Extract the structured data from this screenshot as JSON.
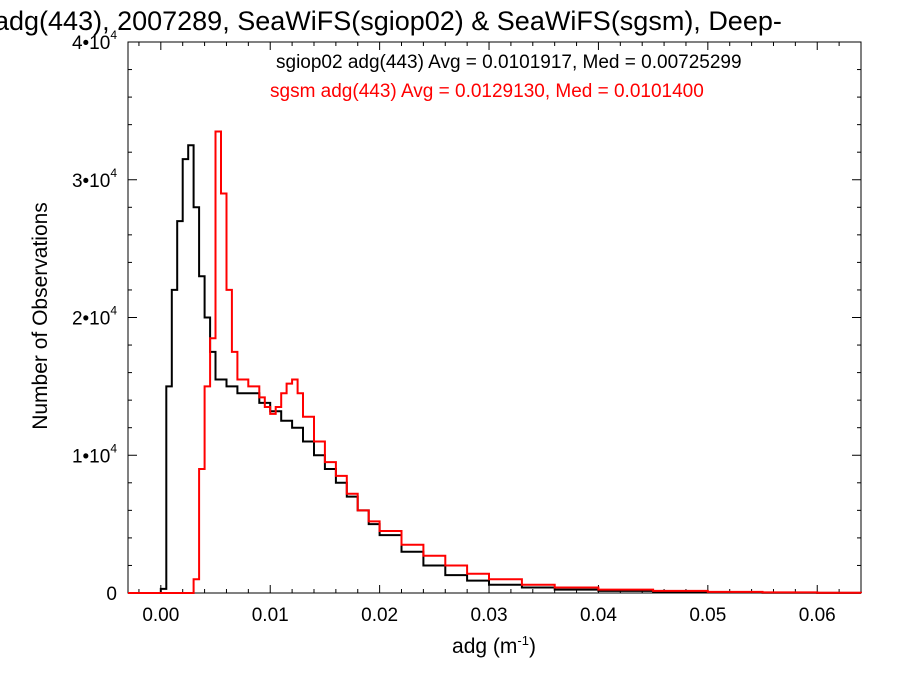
{
  "chart_data": {
    "type": "line",
    "title": "adg(443), 2007289, SeaWiFS(sgiop02) & SeaWiFS(sgsm), Deep-",
    "xlabel": "adg (m",
    "xlabel_sup": "-1",
    "xlabel_end": ")",
    "ylabel": "Number of Observations",
    "xlim": [
      -0.003,
      0.064
    ],
    "ylim": [
      0,
      40000
    ],
    "grid": false,
    "x_ticks": [
      {
        "value": 0.0,
        "label": "0.00"
      },
      {
        "value": 0.01,
        "label": "0.01"
      },
      {
        "value": 0.02,
        "label": "0.02"
      },
      {
        "value": 0.03,
        "label": "0.03"
      },
      {
        "value": 0.04,
        "label": "0.04"
      },
      {
        "value": 0.05,
        "label": "0.05"
      },
      {
        "value": 0.06,
        "label": "0.06"
      }
    ],
    "y_ticks": [
      {
        "value": 0,
        "label": "0",
        "exp": ""
      },
      {
        "value": 10000,
        "label": "1•10",
        "exp": "4"
      },
      {
        "value": 20000,
        "label": "2•10",
        "exp": "4"
      },
      {
        "value": 30000,
        "label": "3•10",
        "exp": "4"
      },
      {
        "value": 40000,
        "label": "4•10",
        "exp": "4"
      }
    ],
    "legend": {
      "placement": "top-right",
      "entries": [
        {
          "text": "sgiop02 adg(443) Avg = 0.0101917, Med = 0.00725299",
          "color": "#000000"
        },
        {
          "text": "sgsm adg(443) Avg = 0.0129130, Med = 0.0101400",
          "color": "#ff0000"
        }
      ]
    },
    "series": [
      {
        "color": "#000000",
        "x": [
          -0.003,
          0.0,
          0.0005,
          0.001,
          0.0015,
          0.002,
          0.0025,
          0.003,
          0.0035,
          0.004,
          0.0045,
          0.005,
          0.006,
          0.007,
          0.008,
          0.009,
          0.01,
          0.011,
          0.012,
          0.013,
          0.014,
          0.015,
          0.016,
          0.017,
          0.018,
          0.019,
          0.02,
          0.022,
          0.024,
          0.026,
          0.028,
          0.03,
          0.033,
          0.036,
          0.04,
          0.045,
          0.05,
          0.055,
          0.06,
          0.064
        ],
        "values": [
          0,
          300,
          15000,
          22000,
          27000,
          31500,
          32500,
          28000,
          23000,
          20000,
          17500,
          15500,
          15000,
          14500,
          14500,
          13800,
          13200,
          12500,
          12000,
          11000,
          10000,
          9000,
          8000,
          7000,
          6000,
          5000,
          4200,
          3000,
          2000,
          1300,
          900,
          600,
          400,
          250,
          150,
          80,
          40,
          20,
          10,
          5
        ]
      },
      {
        "color": "#ff0000",
        "x": [
          -0.003,
          0.0025,
          0.003,
          0.0035,
          0.004,
          0.0045,
          0.005,
          0.0055,
          0.006,
          0.0065,
          0.007,
          0.008,
          0.009,
          0.0095,
          0.01,
          0.0105,
          0.011,
          0.0115,
          0.012,
          0.0125,
          0.013,
          0.014,
          0.015,
          0.016,
          0.017,
          0.018,
          0.019,
          0.02,
          0.022,
          0.024,
          0.026,
          0.028,
          0.03,
          0.033,
          0.036,
          0.04,
          0.045,
          0.05,
          0.055,
          0.06,
          0.064
        ],
        "values": [
          0,
          0,
          1000,
          9000,
          15000,
          18500,
          33500,
          29000,
          22000,
          17500,
          15500,
          15000,
          14200,
          13500,
          13000,
          13500,
          14500,
          15200,
          15500,
          14500,
          12800,
          11000,
          9500,
          8500,
          7200,
          6000,
          5200,
          4500,
          3500,
          2700,
          2000,
          1400,
          1000,
          600,
          400,
          250,
          150,
          80,
          40,
          20,
          10
        ]
      }
    ]
  }
}
